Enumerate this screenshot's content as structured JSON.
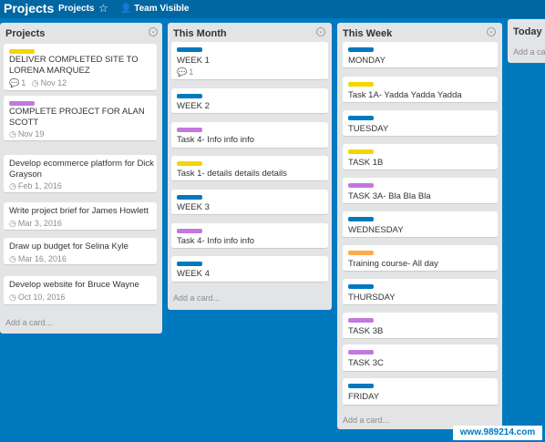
{
  "header": {
    "title": "Projects",
    "board_button": "Projects",
    "star_icon": "star-icon",
    "team_label": "Team Visible",
    "team_icon": "users-icon"
  },
  "colors": {
    "yellow": "#f2d600",
    "purple": "#c377e0",
    "blue": "#0079bf",
    "orange": "#ffab4a"
  },
  "lists": [
    {
      "title": "Projects",
      "cards": [
        {
          "title": "DELIVER COMPLETED SITE TO",
          "title2": "LORENA MARQUEZ",
          "label": "yellow",
          "comments": "1",
          "due": "Nov 12"
        },
        {
          "title": "COMPLETE PROJECT FOR ALAN",
          "title2": "SCOTT",
          "label": "purple",
          "due": "Nov 19"
        },
        {
          "title": "Develop ecommerce platform for Dick",
          "title2": "Grayson",
          "due": "Feb 1, 2016"
        },
        {
          "title": "Write project brief for James Howlett",
          "due": "Mar 3, 2016"
        },
        {
          "title": "Draw up budget for Selina Kyle",
          "due": "Mar 16, 2016"
        },
        {
          "title": "Develop website for Bruce Wayne",
          "due": "Oct 10, 2016"
        }
      ],
      "add_card": "Add a card..."
    },
    {
      "title": "This Month",
      "cards": [
        {
          "title": "WEEK 1",
          "label": "blue",
          "comments": "1"
        },
        {
          "title": "WEEK 2",
          "label": "blue"
        },
        {
          "title": "Task 4- Info info info",
          "label": "purple"
        },
        {
          "title": "Task 1- details details details",
          "label": "yellow"
        },
        {
          "title": "WEEK 3",
          "label": "blue"
        },
        {
          "title": "Task 4- Info info info",
          "label": "purple"
        },
        {
          "title": "WEEK 4",
          "label": "blue"
        }
      ],
      "add_card": "Add a card..."
    },
    {
      "title": "This Week",
      "cards": [
        {
          "title": "MONDAY",
          "label": "blue"
        },
        {
          "title": "Task 1A- Yadda Yadda Yadda",
          "label": "yellow"
        },
        {
          "title": "TUESDAY",
          "label": "blue"
        },
        {
          "title": "TASK 1B",
          "label": "yellow"
        },
        {
          "title": "TASK 3A- Bla Bla Bla",
          "label": "purple"
        },
        {
          "title": "WEDNESDAY",
          "label": "blue"
        },
        {
          "title": "Training course- All day",
          "label": "orange"
        },
        {
          "title": "THURSDAY",
          "label": "blue"
        },
        {
          "title": "TASK 3B",
          "label": "purple"
        },
        {
          "title": "TASK 3C",
          "label": "purple"
        },
        {
          "title": "FRIDAY",
          "label": "blue"
        }
      ],
      "add_card": "Add a card..."
    },
    {
      "title": "Today",
      "cards": [],
      "add_card": "Add a ca"
    }
  ],
  "watermark": "www.989214.com"
}
